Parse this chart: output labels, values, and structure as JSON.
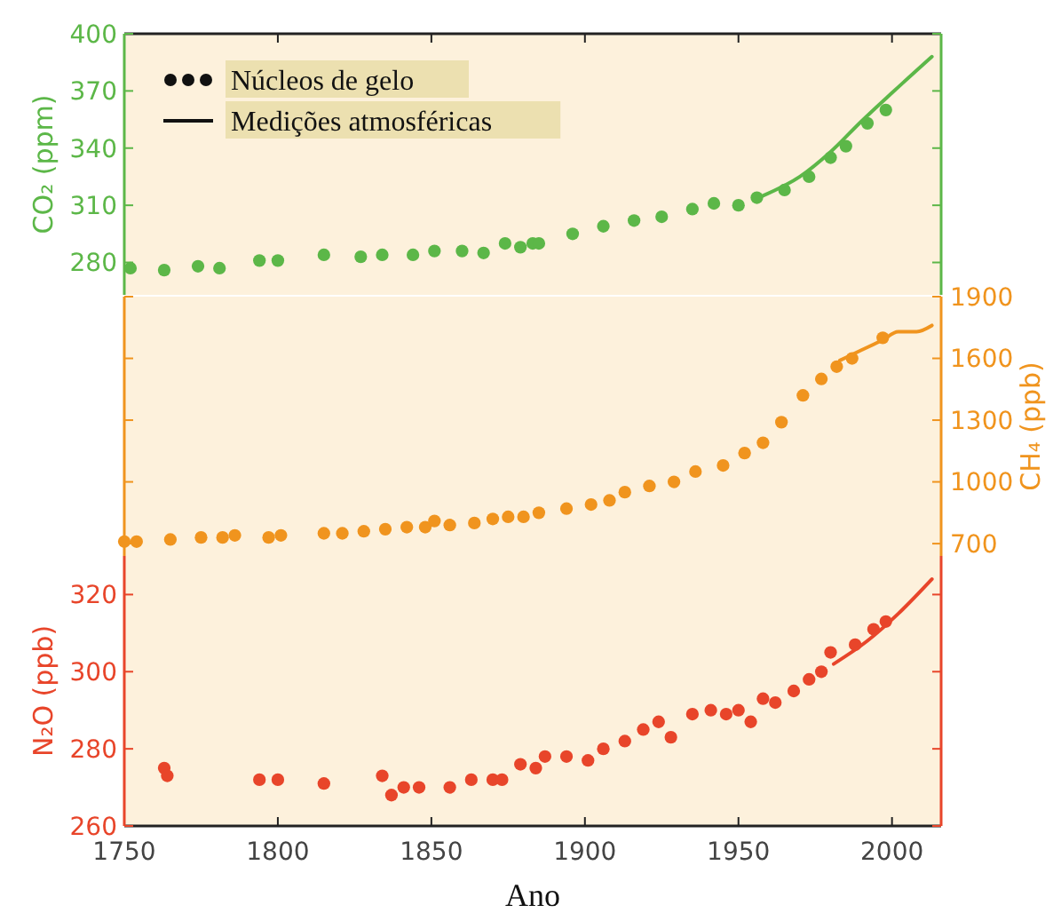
{
  "chart_data": [
    {
      "type": "scatter",
      "ylabel": "CO₂ (ppm)",
      "annotations": [
        "Núcleos de gelo",
        "Medições atmosféricas"
      ],
      "xlim": [
        1750,
        2016
      ],
      "xticks": [
        1750,
        1800,
        1850,
        1900,
        1950,
        2000
      ],
      "ylim": [
        263,
        400
      ],
      "yticks": [
        280,
        310,
        340,
        370,
        400
      ],
      "tick_labels": "y",
      "marker": "circle",
      "line_style": "solid",
      "series": [
        {
          "color": "#5cb748",
          "x": [
            1752,
            1763,
            1774,
            1781,
            1794,
            1800,
            1815,
            1827,
            1834,
            1844,
            1851,
            1860,
            1867,
            1874,
            1879,
            1883,
            1885,
            1896,
            1906,
            1916,
            1925,
            1935,
            1942,
            1950,
            1956,
            1965,
            1973,
            1980,
            1985,
            1992,
            1998
          ],
          "values": [
            277,
            276,
            278,
            277,
            281,
            281,
            284,
            283,
            284,
            284,
            286,
            286,
            285,
            290,
            288,
            290,
            290,
            295,
            299,
            302,
            304,
            308,
            311,
            310,
            314,
            318,
            325,
            335,
            341,
            353,
            360
          ]
        },
        {
          "type": "line",
          "marker": "none",
          "color": "#5cb748",
          "x": [
            1958,
            1970,
            1980,
            1990,
            2000,
            2013
          ],
          "values": [
            315,
            325,
            338,
            354,
            369,
            388
          ]
        }
      ]
    },
    {
      "type": "scatter",
      "y2label": "CH₄ (ppb)",
      "xlim": [
        1750,
        2016
      ],
      "xticks": [
        1750,
        1800,
        1850,
        1900,
        1950,
        2000
      ],
      "y2lim": [
        640,
        1900
      ],
      "y2ticks": [
        700,
        1000,
        1300,
        1600,
        1900
      ],
      "tick_labels": "y",
      "marker": "circle",
      "line_style": "solid",
      "series": [
        {
          "axis": "y2",
          "color": "#f0941e",
          "x": [
            1750,
            1754,
            1765,
            1775,
            1782,
            1786,
            1797,
            1801,
            1815,
            1821,
            1828,
            1835,
            1842,
            1848,
            1851,
            1856,
            1864,
            1870,
            1875,
            1880,
            1885,
            1894,
            1902,
            1908,
            1913,
            1921,
            1929,
            1936,
            1945,
            1952,
            1958,
            1964,
            1971,
            1977,
            1982,
            1987,
            1997
          ],
          "values": [
            710,
            710,
            720,
            730,
            730,
            740,
            730,
            740,
            750,
            750,
            760,
            770,
            780,
            780,
            810,
            790,
            800,
            820,
            830,
            830,
            850,
            870,
            890,
            910,
            950,
            980,
            1000,
            1050,
            1080,
            1140,
            1190,
            1290,
            1420,
            1500,
            1560,
            1600,
            1700
          ]
        },
        {
          "type": "line",
          "marker": "none",
          "axis": "y2",
          "color": "#f0941e",
          "x": [
            1983,
            1990,
            1997,
            2002,
            2008,
            2013
          ],
          "values": [
            1590,
            1640,
            1690,
            1730,
            1730,
            1760
          ]
        }
      ]
    },
    {
      "type": "scatter",
      "xlabel": "Ano",
      "ylabel": "N₂O (ppb)",
      "xlim": [
        1750,
        2016
      ],
      "xticks": [
        1750,
        1800,
        1850,
        1900,
        1950,
        2000
      ],
      "ylim": [
        260,
        330
      ],
      "yticks": [
        260,
        280,
        300,
        320
      ],
      "marker": "circle",
      "line_style": "solid",
      "series": [
        {
          "color": "#e8452a",
          "x": [
            1763,
            1764,
            1794,
            1800,
            1815,
            1834,
            1837,
            1841,
            1846,
            1856,
            1863,
            1870,
            1873,
            1879,
            1884,
            1887,
            1894,
            1901,
            1906,
            1913,
            1919,
            1924,
            1928,
            1935,
            1941,
            1946,
            1950,
            1954,
            1958,
            1962,
            1968,
            1973,
            1977,
            1980,
            1988,
            1994,
            1998
          ],
          "values": [
            275,
            273,
            272,
            272,
            271,
            273,
            268,
            270,
            270,
            270,
            272,
            272,
            272,
            276,
            275,
            278,
            278,
            277,
            280,
            282,
            285,
            287,
            283,
            289,
            290,
            289,
            290,
            287,
            293,
            292,
            295,
            298,
            300,
            305,
            307,
            311,
            313
          ]
        },
        {
          "type": "line",
          "marker": "none",
          "color": "#e8452a",
          "x": [
            1981,
            1992,
            2002,
            2013
          ],
          "values": [
            302,
            308,
            315,
            324
          ]
        }
      ]
    }
  ]
}
